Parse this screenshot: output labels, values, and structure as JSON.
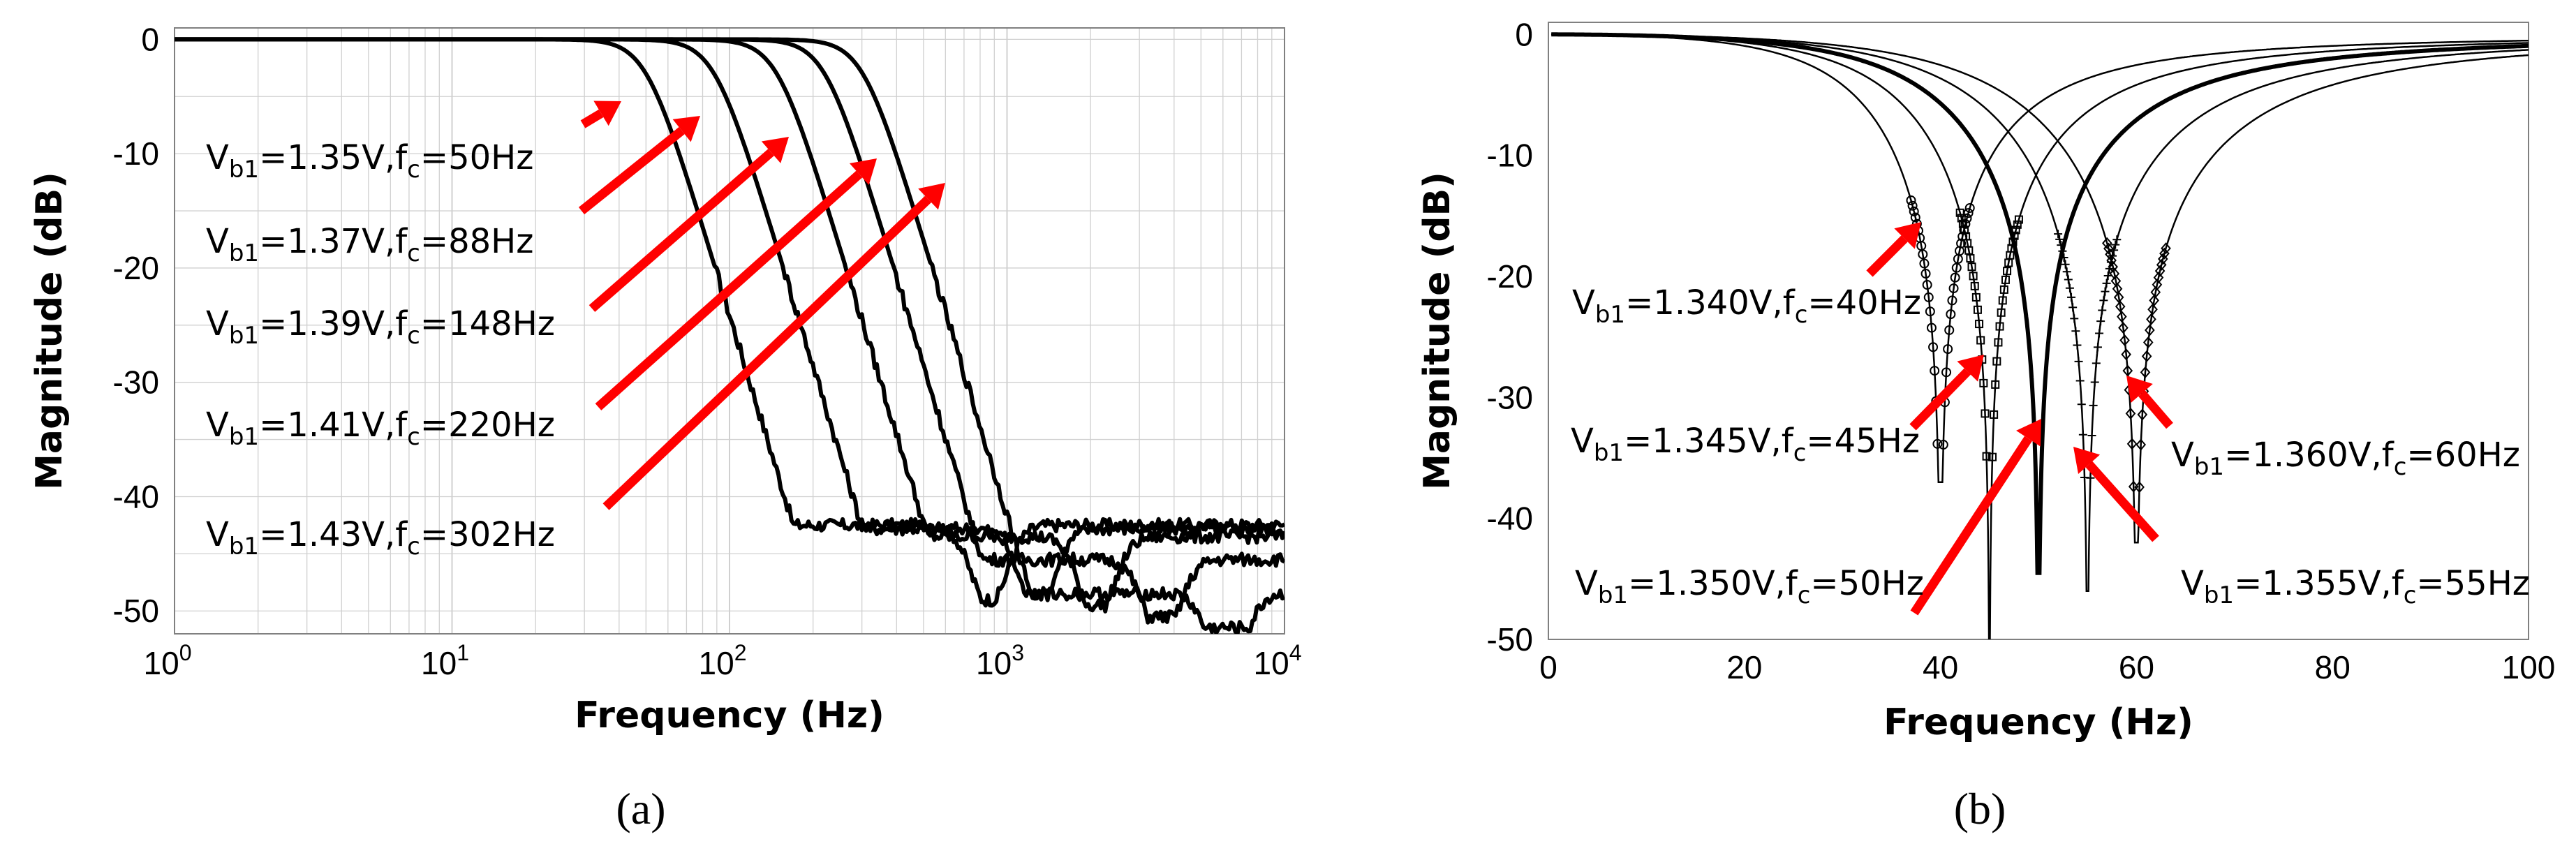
{
  "chart_data": [
    {
      "type": "line",
      "panel_label": "(a)",
      "xscale": "log",
      "xlim": [
        1,
        10000
      ],
      "ylim": [
        -52,
        1
      ],
      "xlabel": "Frequency (Hz)",
      "ylabel": "Magnitude (dB)",
      "grid": true,
      "x_ticks": [
        {
          "value": 1,
          "base": "10",
          "exp": "0"
        },
        {
          "value": 10,
          "base": "10",
          "exp": "1"
        },
        {
          "value": 100,
          "base": "10",
          "exp": "2"
        },
        {
          "value": 1000,
          "base": "10",
          "exp": "3"
        },
        {
          "value": 10000,
          "base": "10",
          "exp": "4"
        }
      ],
      "y_ticks": [
        {
          "value": 0,
          "label": "0"
        },
        {
          "value": -10,
          "label": "-10"
        },
        {
          "value": -20,
          "label": "-20"
        },
        {
          "value": -30,
          "label": "-30"
        },
        {
          "value": -40,
          "label": "-40"
        },
        {
          "value": -50,
          "label": "-50"
        }
      ],
      "series": [
        {
          "name": "Vb1=1.35V, fc=50Hz",
          "vb1": "1.35V",
          "fc": "50Hz",
          "fc_hz": 50,
          "notch_hz": 860,
          "notch_db": -49,
          "floor_db": -42.5
        },
        {
          "name": "Vb1=1.37V, fc=88Hz",
          "vb1": "1.37V",
          "fc": "88Hz",
          "fc_hz": 88,
          "notch_hz": 1280,
          "notch_db": -48.5,
          "floor_db": -42.8
        },
        {
          "name": "Vb1=1.39V, fc=148Hz",
          "vb1": "1.39V",
          "fc": "148Hz",
          "fc_hz": 148,
          "notch_hz": 2100,
          "notch_db": -49.5,
          "floor_db": -43.5
        },
        {
          "name": "Vb1=1.41V, fc=220Hz",
          "vb1": "1.41V",
          "fc": "220Hz",
          "fc_hz": 220,
          "notch_hz": 3600,
          "notch_db": -50.5,
          "floor_db": -45.5
        },
        {
          "name": "Vb1=1.43V, fc=302Hz",
          "vb1": "1.43V",
          "fc": "302Hz",
          "fc_hz": 302,
          "notch_hz": 6200,
          "notch_db": -51.5,
          "floor_db": -48.5
        }
      ],
      "annotations": [
        {
          "vb1": "1.35V",
          "fc": "50Hz"
        },
        {
          "vb1": "1.37V",
          "fc": "88Hz"
        },
        {
          "vb1": "1.39V",
          "fc": "148Hz"
        },
        {
          "vb1": "1.41V",
          "fc": "220Hz"
        },
        {
          "vb1": "1.43V",
          "fc": "302Hz"
        }
      ]
    },
    {
      "type": "line",
      "panel_label": "(b)",
      "xscale": "linear",
      "xlim": [
        0,
        100
      ],
      "ylim": [
        -50,
        1
      ],
      "xlabel": "Frequency (Hz)",
      "ylabel": "Magnitude (dB)",
      "grid": false,
      "x_ticks": [
        {
          "value": 0,
          "label": "0"
        },
        {
          "value": 20,
          "label": "20"
        },
        {
          "value": 40,
          "label": "40"
        },
        {
          "value": 60,
          "label": "60"
        },
        {
          "value": 80,
          "label": "80"
        },
        {
          "value": 100,
          "label": "100"
        }
      ],
      "y_ticks": [
        {
          "value": 0,
          "label": "0"
        },
        {
          "value": -10,
          "label": "-10"
        },
        {
          "value": -20,
          "label": "-20"
        },
        {
          "value": -30,
          "label": "-30"
        },
        {
          "value": -40,
          "label": "-40"
        },
        {
          "value": -50,
          "label": "-50"
        }
      ],
      "series": [
        {
          "name": "Vb1=1.340V, fc=40Hz",
          "vb1": "1.340V",
          "fc": "40Hz",
          "fc_hz": 40,
          "depth_db": -37,
          "marker": "circle"
        },
        {
          "name": "Vb1=1.345V, fc=45Hz",
          "vb1": "1.345V",
          "fc": "45Hz",
          "fc_hz": 45,
          "depth_db": -50,
          "marker": "square"
        },
        {
          "name": "Vb1=1.350V, fc=50Hz",
          "vb1": "1.350V",
          "fc": "50Hz",
          "fc_hz": 50,
          "depth_db": -44.5,
          "marker": "none"
        },
        {
          "name": "Vb1=1.355V, fc=55Hz",
          "vb1": "1.355V",
          "fc": "55Hz",
          "fc_hz": 55,
          "depth_db": -46,
          "marker": "plus"
        },
        {
          "name": "Vb1=1.360V, fc=60Hz",
          "vb1": "1.360V",
          "fc": "60Hz",
          "fc_hz": 60,
          "depth_db": -42,
          "marker": "diamond"
        }
      ],
      "annotations": [
        {
          "vb1": "1.340V",
          "fc": "40Hz"
        },
        {
          "vb1": "1.345V",
          "fc": "45Hz"
        },
        {
          "vb1": "1.350V",
          "fc": "50Hz"
        },
        {
          "vb1": "1.360V",
          "fc": "60Hz"
        },
        {
          "vb1": "1.355V",
          "fc": "55Hz"
        }
      ]
    }
  ],
  "colors": {
    "curve": "#000000",
    "arrow": "#ff0000",
    "grid": "#d0d0d0",
    "frame": "#808080"
  }
}
